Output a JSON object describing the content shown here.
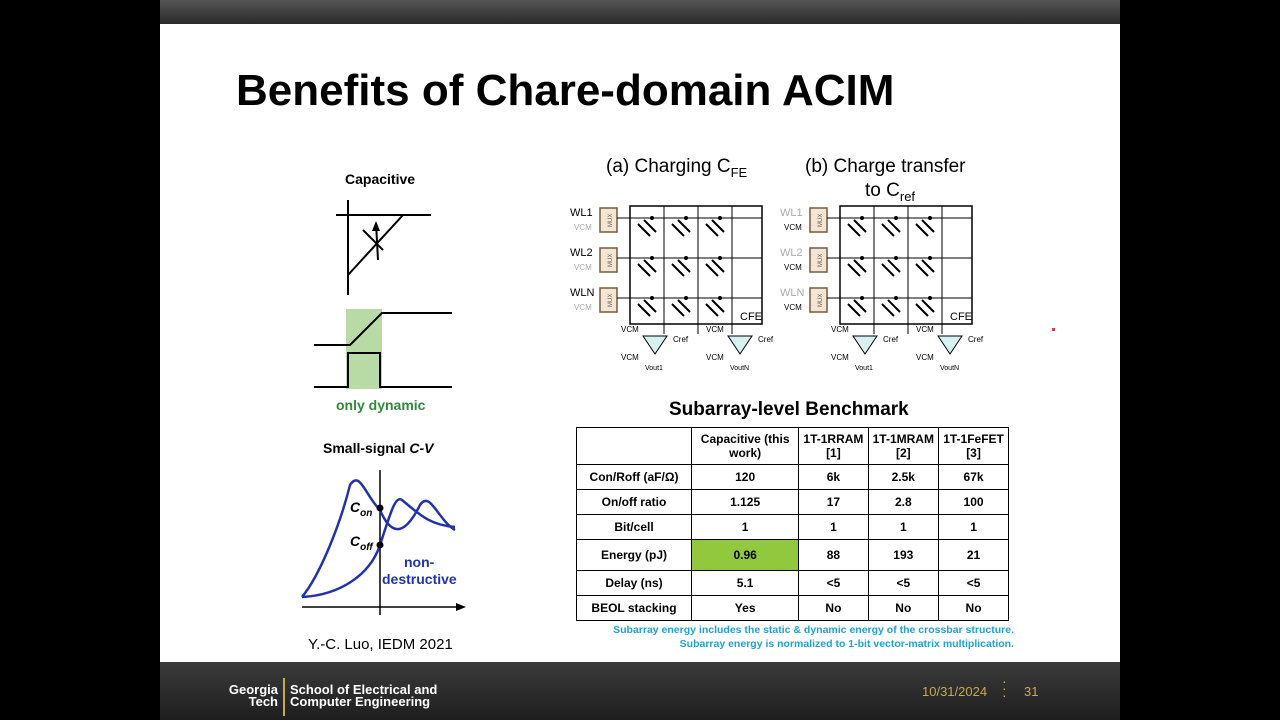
{
  "slide": {
    "title": "Benefits of Chare-domain ACIM",
    "left": {
      "capacitive_label": "Capacitive",
      "only_dynamic": "only dynamic",
      "small_signal_prefix": "Small-signal ",
      "small_signal_cv": "C-V",
      "c_on": "C",
      "c_on_sub": "on",
      "c_off": "C",
      "c_off_sub": "off",
      "nondestructive_1": "non-",
      "nondestructive_2": "destructive",
      "citation": "Y.-C. Luo, IEDM 2021"
    },
    "diagram": {
      "a_title": "(a) Charging C",
      "a_sub": "FE",
      "b_title_1": "(b) Charge transfer",
      "b_title_2": "to C",
      "b_sub": "ref",
      "wl_labels": [
        "WL1",
        "WL2",
        "WLN"
      ],
      "mux": "MUX",
      "vcm": "VCM",
      "cfe": "CFE",
      "cref": "Cref",
      "vout1": "Vout1",
      "voutn": "VoutN"
    },
    "benchmark": {
      "title": "Subarray-level Benchmark",
      "headers": [
        "",
        "Capacitive (this work)",
        "1T-1RRAM [1]",
        "1T-1MRAM [2]",
        "1T-1FeFET [3]"
      ],
      "rows": [
        {
          "label": "Con/Roff (aF/Ω)",
          "values": [
            "120",
            "6k",
            "2.5k",
            "67k"
          ]
        },
        {
          "label": "On/off ratio",
          "values": [
            "1.125",
            "17",
            "2.8",
            "100"
          ]
        },
        {
          "label": "Bit/cell",
          "values": [
            "1",
            "1",
            "1",
            "1"
          ]
        },
        {
          "label": "Energy (pJ)",
          "values": [
            "0.96",
            "88",
            "193",
            "21"
          ]
        },
        {
          "label": "Delay (ns)",
          "values": [
            "5.1",
            "<5",
            "<5",
            "<5"
          ]
        },
        {
          "label": "BEOL stacking",
          "values": [
            "Yes",
            "No",
            "No",
            "No"
          ]
        }
      ],
      "note1": "Subarray energy includes the static & dynamic energy of the crossbar structure.",
      "note2": "Subarray energy is normalized to 1-bit vector-matrix multiplication."
    }
  },
  "footer": {
    "logo_line1": "Georgia",
    "logo_line2": "Tech",
    "school_line1": "School of Electrical and",
    "school_line2": "Computer Engineering",
    "date": "10/31/2024",
    "page_number": "31"
  },
  "colors": {
    "highlight": "#92c83e",
    "note": "#1aa3d8",
    "accent_blue": "#2233aa",
    "green_text": "#2e8b3a",
    "footer_gold": "#c9a950"
  }
}
